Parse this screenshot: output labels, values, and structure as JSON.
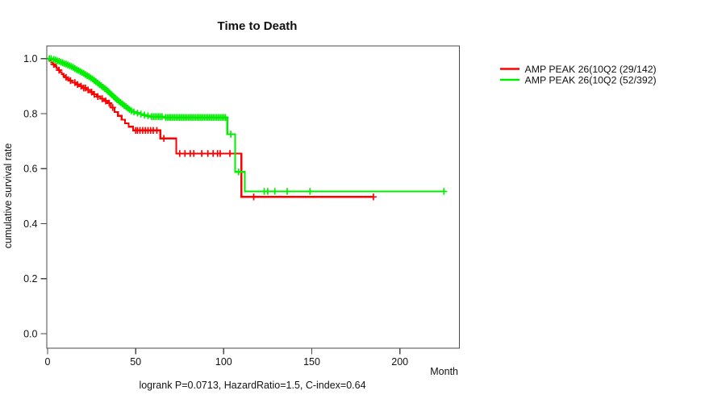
{
  "chart_data": {
    "type": "line",
    "chart_kind": "kaplan-meier-survival",
    "title": "Time to Death",
    "xlabel": "Month",
    "ylabel": "cumulative survival rate",
    "footer_annotation": "logrank P=0.0713, HazardRatio=1.5, C-index=0.64",
    "xlim": [
      0,
      233
    ],
    "ylim": [
      0.0,
      1.0
    ],
    "grid": false,
    "legend_position": "right-outside",
    "frame_color": "#4a4a4a",
    "xticks": [
      {
        "value": 0,
        "label": "0"
      },
      {
        "value": 50,
        "label": "50"
      },
      {
        "value": 100,
        "label": "100"
      },
      {
        "value": 150,
        "label": "150"
      },
      {
        "value": 200,
        "label": "200"
      }
    ],
    "yticks": [
      {
        "value": 0.0,
        "label": "0.0"
      },
      {
        "value": 0.2,
        "label": "0.2"
      },
      {
        "value": 0.4,
        "label": "0.4"
      },
      {
        "value": 0.6,
        "label": "0.6"
      },
      {
        "value": 0.8,
        "label": "0.8"
      },
      {
        "value": 1.0,
        "label": "1.0"
      }
    ],
    "series": [
      {
        "id": "red-group",
        "name": "AMP PEAK 26(10Q2 (29/142)",
        "color": "#ff0000",
        "end_month": 185,
        "steps": [
          [
            0,
            1
          ],
          [
            1,
            0.993
          ],
          [
            2,
            0.986
          ],
          [
            3,
            0.979
          ],
          [
            4,
            0.972
          ],
          [
            5,
            0.965
          ],
          [
            6,
            0.958
          ],
          [
            7,
            0.951
          ],
          [
            8,
            0.944
          ],
          [
            9,
            0.938
          ],
          [
            10,
            0.932
          ],
          [
            11,
            0.926
          ],
          [
            12,
            0.92
          ],
          [
            14,
            0.913
          ],
          [
            16,
            0.906
          ],
          [
            18,
            0.9
          ],
          [
            20,
            0.893
          ],
          [
            22,
            0.886
          ],
          [
            24,
            0.878
          ],
          [
            26,
            0.87
          ],
          [
            28,
            0.862
          ],
          [
            30,
            0.854
          ],
          [
            32,
            0.846
          ],
          [
            34,
            0.838
          ],
          [
            36,
            0.822
          ],
          [
            38,
            0.806
          ],
          [
            40,
            0.792
          ],
          [
            42,
            0.778
          ],
          [
            44,
            0.765
          ],
          [
            46,
            0.752
          ],
          [
            48.5,
            0.739
          ],
          [
            64,
            0.71
          ],
          [
            73,
            0.655
          ],
          [
            110,
            0.497
          ]
        ],
        "censor_months": [
          3.5,
          6.5,
          10.5,
          13,
          15.5,
          17,
          19,
          20.5,
          21.5,
          23,
          25,
          26.5,
          28.5,
          31,
          33,
          35,
          37,
          50,
          51,
          52.5,
          54,
          55.5,
          57,
          58.5,
          60,
          62,
          66,
          75,
          78,
          81,
          83,
          87.5,
          91,
          94,
          96.5,
          98,
          103.5,
          117,
          185
        ]
      },
      {
        "id": "green-group",
        "name": "AMP PEAK 26(10Q2 (52/392)",
        "color": "#00ee00",
        "end_month": 225,
        "steps": [
          [
            0,
            1
          ],
          [
            3,
            0.997
          ],
          [
            4,
            0.995
          ],
          [
            5,
            0.992
          ],
          [
            6,
            0.99
          ],
          [
            7,
            0.987
          ],
          [
            8,
            0.985
          ],
          [
            9,
            0.982
          ],
          [
            10,
            0.98
          ],
          [
            11,
            0.977
          ],
          [
            12,
            0.974
          ],
          [
            13,
            0.971
          ],
          [
            14,
            0.968
          ],
          [
            15,
            0.964
          ],
          [
            16,
            0.96
          ],
          [
            17,
            0.957
          ],
          [
            18,
            0.953
          ],
          [
            19,
            0.95
          ],
          [
            20,
            0.946
          ],
          [
            21,
            0.942
          ],
          [
            22,
            0.938
          ],
          [
            23,
            0.934
          ],
          [
            24,
            0.93
          ],
          [
            25,
            0.926
          ],
          [
            26,
            0.921
          ],
          [
            27,
            0.916
          ],
          [
            28,
            0.911
          ],
          [
            29,
            0.906
          ],
          [
            30,
            0.901
          ],
          [
            31,
            0.896
          ],
          [
            32,
            0.891
          ],
          [
            33,
            0.886
          ],
          [
            34,
            0.88
          ],
          [
            35,
            0.874
          ],
          [
            36,
            0.868
          ],
          [
            37,
            0.862
          ],
          [
            38,
            0.856
          ],
          [
            39,
            0.85
          ],
          [
            40,
            0.845
          ],
          [
            41,
            0.84
          ],
          [
            42,
            0.835
          ],
          [
            43,
            0.83
          ],
          [
            44,
            0.825
          ],
          [
            45,
            0.82
          ],
          [
            46,
            0.815
          ],
          [
            47,
            0.81
          ],
          [
            48,
            0.806
          ],
          [
            50,
            0.802
          ],
          [
            52,
            0.798
          ],
          [
            54,
            0.795
          ],
          [
            56,
            0.792
          ],
          [
            58,
            0.789
          ],
          [
            66,
            0.786
          ],
          [
            102,
            0.725
          ],
          [
            106.5,
            0.588
          ],
          [
            112,
            0.517
          ]
        ],
        "censor_months": [
          1,
          2,
          3.5,
          4.5,
          5.5,
          6.5,
          7.5,
          8.5,
          9.5,
          10.5,
          11.5,
          12.5,
          13.5,
          14.5,
          15.5,
          16.5,
          17.5,
          18.5,
          19.5,
          20.5,
          21.5,
          22.5,
          23.5,
          24.5,
          25.5,
          26.5,
          27.5,
          28.5,
          29.5,
          30.5,
          31.5,
          32.5,
          33.5,
          34.5,
          35.5,
          36.5,
          37.5,
          38.5,
          39.5,
          40.5,
          41.5,
          42.5,
          43.5,
          44.5,
          45.5,
          46.5,
          47.5,
          49,
          51,
          53,
          55,
          57,
          59,
          60,
          61,
          62,
          63,
          64,
          65,
          67,
          68,
          69,
          70,
          71,
          72,
          73,
          74,
          75,
          76,
          77,
          78,
          79,
          80,
          81,
          82,
          83,
          84,
          85,
          86,
          87,
          88,
          89,
          90,
          91,
          92,
          93,
          94,
          95,
          96,
          97,
          98,
          99,
          100,
          101,
          104,
          108.5,
          123,
          125,
          129,
          136,
          149,
          225
        ]
      }
    ]
  }
}
